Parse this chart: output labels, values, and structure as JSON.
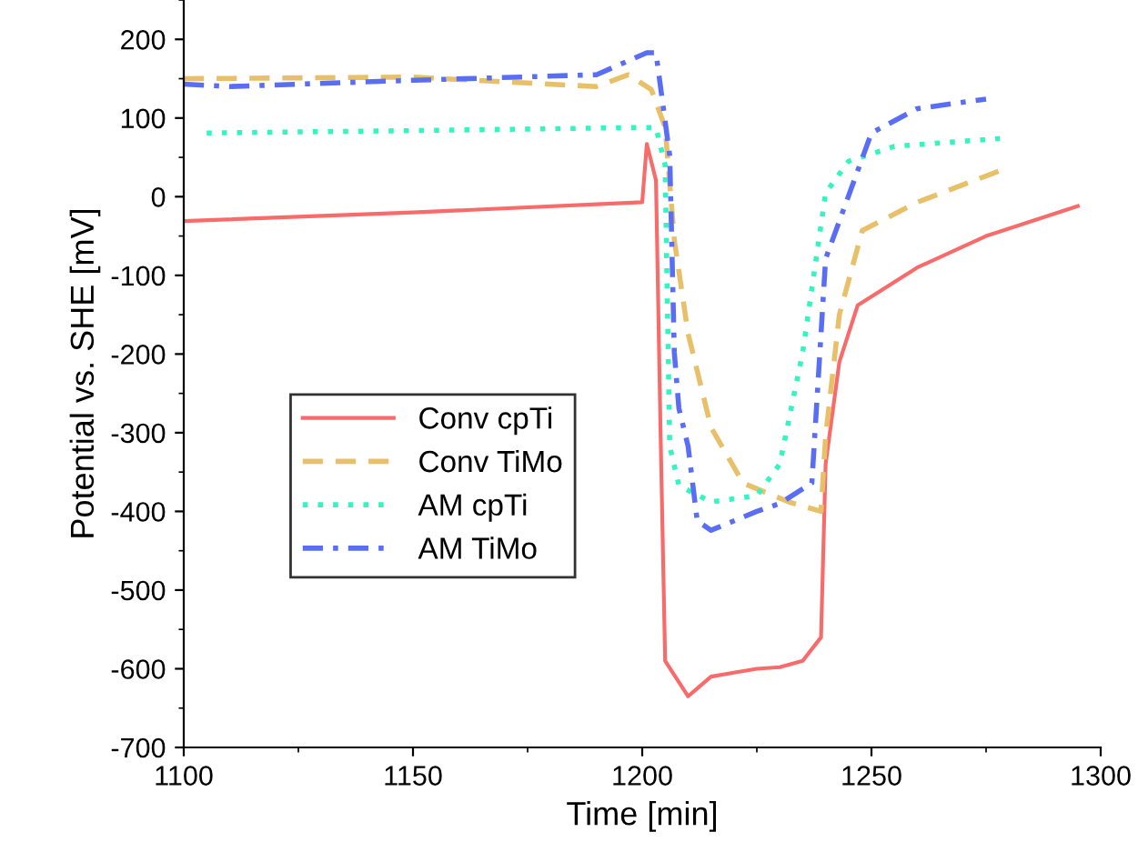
{
  "chart_data": {
    "type": "line",
    "xlabel": "Time [min]",
    "ylabel": "Potential vs. SHE [mV]",
    "xlim": [
      1100,
      1300
    ],
    "ylim": [
      -700,
      250
    ],
    "xticks": [
      1100,
      1150,
      1200,
      1250,
      1300
    ],
    "yticks": [
      -700,
      -600,
      -500,
      -400,
      -300,
      -200,
      -100,
      0,
      100,
      200
    ],
    "grid": false,
    "legend": "left",
    "series": [
      {
        "name": "Conv cpTi",
        "color": "#f86b6b",
        "line_style": "solid",
        "x": [
          1100,
          1150,
          1200,
          1201,
          1203,
          1204,
          1205,
          1210,
          1215,
          1220,
          1225,
          1230,
          1235,
          1239,
          1240,
          1243,
          1247,
          1260,
          1275,
          1295
        ],
        "values": [
          -31,
          -20,
          -7,
          67,
          21,
          -300,
          -590,
          -635,
          -610,
          -605,
          -600,
          -598,
          -590,
          -560,
          -340,
          -210,
          -138,
          -90,
          -50,
          -12
        ]
      },
      {
        "name": "Conv TiMo",
        "color": "#e8c06a",
        "line_style": "dashed",
        "x": [
          1100,
          1150,
          1190,
          1197,
          1202,
          1205,
          1207,
          1210,
          1215,
          1222,
          1232,
          1239,
          1240,
          1243,
          1248,
          1260,
          1278
        ],
        "values": [
          150,
          152,
          140,
          155,
          136,
          88,
          -55,
          -174,
          -293,
          -364,
          -388,
          -400,
          -305,
          -150,
          -43,
          -7,
          33
        ]
      },
      {
        "name": "AM cpTi",
        "color": "#33f5c0",
        "line_style": "dotted",
        "x": [
          1105,
          1150,
          1200,
          1203,
          1205,
          1206,
          1208,
          1215,
          1225,
          1230,
          1235,
          1240,
          1245,
          1255,
          1278
        ],
        "values": [
          81,
          84,
          88,
          88,
          40,
          -317,
          -367,
          -388,
          -380,
          -340,
          -198,
          5,
          45,
          64,
          74
        ]
      },
      {
        "name": "AM TiMo",
        "color": "#5a6ef5",
        "line_style": "dashdot",
        "x": [
          1100,
          1110,
          1150,
          1190,
          1201,
          1203,
          1206,
          1207,
          1208,
          1210,
          1212,
          1215,
          1225,
          1230,
          1237,
          1240,
          1243,
          1250,
          1260,
          1275
        ],
        "values": [
          143,
          140,
          148,
          155,
          183,
          183,
          52,
          -198,
          -269,
          -317,
          -412,
          -424,
          -400,
          -390,
          -364,
          -79,
          -31,
          81,
          112,
          124
        ]
      }
    ]
  }
}
